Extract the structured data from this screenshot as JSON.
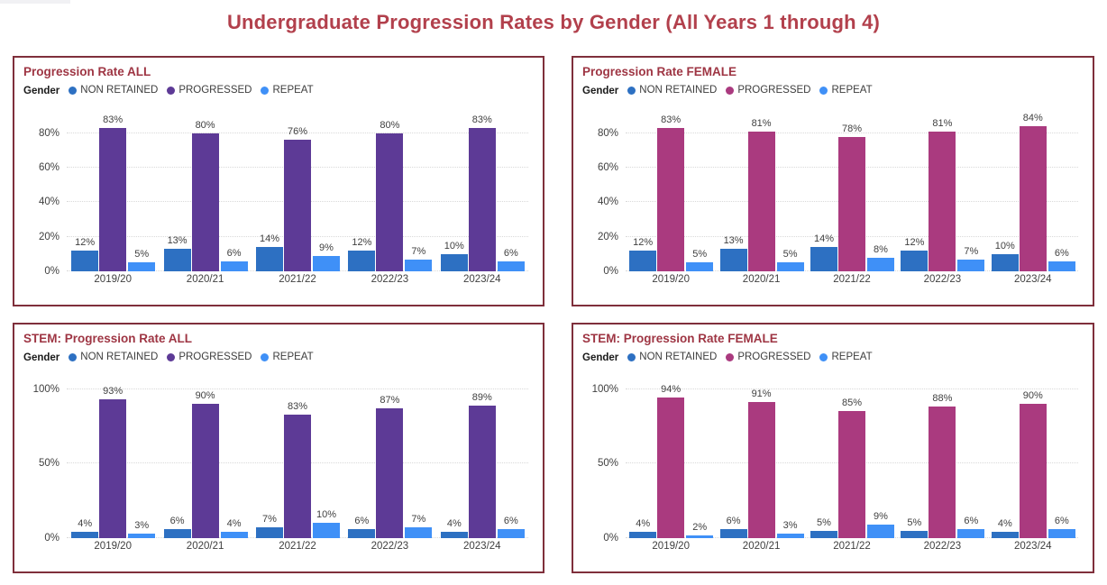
{
  "page": {
    "title": "Undergraduate Progression Rates by Gender (All Years 1 through 4)"
  },
  "colors": {
    "page_title": "#B2404C",
    "card_border": "#7F2F3B",
    "card_title": "#9E3543",
    "non_retained": "#2D70C2",
    "progressed_all": "#5D3A96",
    "progressed_female": "#AA3A7F",
    "repeat": "#3F90F7"
  },
  "chart_data": [
    {
      "type": "bar",
      "title": "Progression Rate ALL",
      "legend_label": "Gender",
      "categories": [
        "2019/20",
        "2020/21",
        "2021/22",
        "2022/23",
        "2023/24"
      ],
      "series": [
        {
          "name": "NON RETAINED",
          "color": "#2D70C2",
          "values": [
            12,
            13,
            14,
            12,
            10
          ]
        },
        {
          "name": "PROGRESSED",
          "color": "#5D3A96",
          "values": [
            83,
            80,
            76,
            80,
            83
          ]
        },
        {
          "name": "REPEAT",
          "color": "#3F90F7",
          "values": [
            5,
            6,
            9,
            7,
            6
          ]
        }
      ],
      "y_ticks": [
        0,
        20,
        40,
        60,
        80
      ],
      "y_max": 95,
      "value_suffix": "%",
      "grid": "dotted",
      "legend_position": "top"
    },
    {
      "type": "bar",
      "title": "Progression Rate FEMALE",
      "legend_label": "Gender",
      "categories": [
        "2019/20",
        "2020/21",
        "2021/22",
        "2022/23",
        "2023/24"
      ],
      "series": [
        {
          "name": "NON RETAINED",
          "color": "#2D70C2",
          "values": [
            12,
            13,
            14,
            12,
            10
          ]
        },
        {
          "name": "PROGRESSED",
          "color": "#AA3A7F",
          "values": [
            83,
            81,
            78,
            81,
            84
          ]
        },
        {
          "name": "REPEAT",
          "color": "#3F90F7",
          "values": [
            5,
            5,
            8,
            7,
            6
          ]
        }
      ],
      "y_ticks": [
        0,
        20,
        40,
        60,
        80
      ],
      "y_max": 95,
      "value_suffix": "%",
      "grid": "dotted",
      "legend_position": "top"
    },
    {
      "type": "bar",
      "title": "STEM: Progression Rate ALL",
      "legend_label": "Gender",
      "categories": [
        "2019/20",
        "2020/21",
        "2021/22",
        "2022/23",
        "2023/24"
      ],
      "series": [
        {
          "name": "NON RETAINED",
          "color": "#2D70C2",
          "values": [
            4,
            6,
            7,
            6,
            4
          ]
        },
        {
          "name": "PROGRESSED",
          "color": "#5D3A96",
          "values": [
            93,
            90,
            83,
            87,
            89
          ]
        },
        {
          "name": "REPEAT",
          "color": "#3F90F7",
          "values": [
            3,
            4,
            10,
            7,
            6
          ]
        }
      ],
      "y_ticks": [
        0,
        50,
        100
      ],
      "y_max": 110,
      "value_suffix": "%",
      "grid": "dotted",
      "legend_position": "top"
    },
    {
      "type": "bar",
      "title": "STEM: Progression Rate FEMALE",
      "legend_label": "Gender",
      "categories": [
        "2019/20",
        "2020/21",
        "2021/22",
        "2022/23",
        "2023/24"
      ],
      "series": [
        {
          "name": "NON RETAINED",
          "color": "#2D70C2",
          "values": [
            4,
            6,
            5,
            5,
            4
          ]
        },
        {
          "name": "PROGRESSED",
          "color": "#AA3A7F",
          "values": [
            94,
            91,
            85,
            88,
            90
          ]
        },
        {
          "name": "REPEAT",
          "color": "#3F90F7",
          "values": [
            2,
            3,
            9,
            6,
            6
          ]
        }
      ],
      "y_ticks": [
        0,
        50,
        100
      ],
      "y_max": 110,
      "value_suffix": "%",
      "grid": "dotted",
      "legend_position": "top"
    }
  ]
}
